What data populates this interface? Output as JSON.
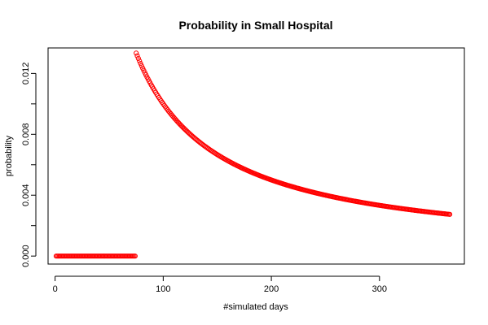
{
  "chart_data": {
    "type": "scatter",
    "title": "Probability in Small Hospital",
    "xlabel": "#simulated days",
    "ylabel": "probability",
    "xlim": [
      -6.5,
      378.5
    ],
    "ylim": [
      -0.000525,
      0.013675
    ],
    "xticks": [
      0,
      100,
      200,
      300
    ],
    "xtick_labels": [
      "0",
      "100",
      "200",
      "300"
    ],
    "yticks": [
      0,
      0.002,
      0.004,
      0.006,
      0.008,
      0.01,
      0.012
    ],
    "ytick_labels": [
      "0.000",
      "",
      "0.004",
      "",
      "0.008",
      "",
      "0.012"
    ],
    "grid": false,
    "legend": "none",
    "marker": "open-circle",
    "point_color": "#ff0000",
    "series": [
      {
        "rule": "y = 0 for x in [1, 74]; y = 1/x for x in [75, 365]",
        "x_start": 1,
        "x_end": 365,
        "zero_until": 74,
        "numerator": 1
      }
    ]
  }
}
